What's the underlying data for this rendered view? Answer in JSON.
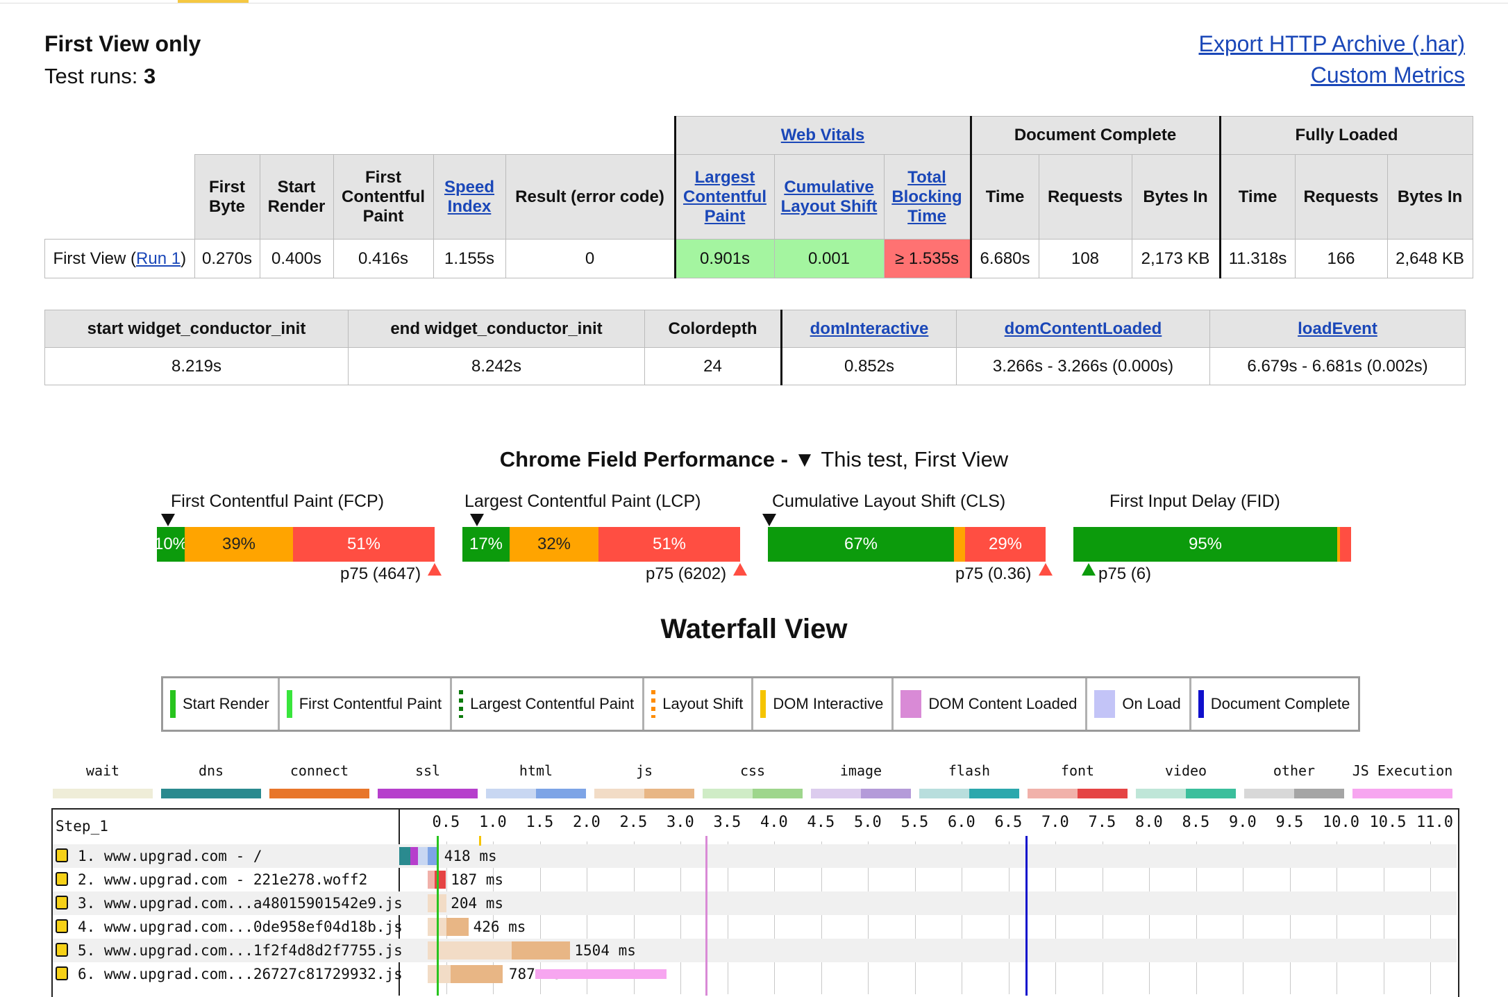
{
  "header": {
    "title": "First View only",
    "runs_label": "Test runs: ",
    "runs_value": "3",
    "link_har": "Export HTTP Archive (.har)",
    "link_custom": "Custom Metrics"
  },
  "summary": {
    "group_web_vitals": "Web Vitals",
    "group_doc_complete": "Document Complete",
    "group_fully_loaded": "Fully Loaded",
    "col_first_byte": "First Byte",
    "col_start_render": "Start Render",
    "col_fcp": "First Contentful Paint",
    "col_speed_index": "Speed Index",
    "col_result": "Result (error code)",
    "col_lcp": "Largest Contentful Paint",
    "col_cls": "Cumulative Layout Shift",
    "col_tbt": "Total Blocking Time",
    "col_time": "Time",
    "col_requests": "Requests",
    "col_bytes": "Bytes In",
    "row_label": "First View (",
    "row_run_link": "Run 1",
    "row_label_end": ")",
    "first_byte": "0.270s",
    "start_render": "0.400s",
    "fcp": "0.416s",
    "speed_index": "1.155s",
    "result": "0",
    "lcp": "0.901s",
    "cls": "0.001",
    "tbt": "≥ 1.535s",
    "dc_time": "6.680s",
    "dc_requests": "108",
    "dc_bytes": "2,173 KB",
    "fl_time": "11.318s",
    "fl_requests": "166",
    "fl_bytes": "2,648 KB"
  },
  "custom": {
    "h1": "start widget_conductor_init",
    "h2": "end widget_conductor_init",
    "h3": "Colordepth",
    "h4": "domInteractive",
    "h5": "domContentLoaded",
    "h6": "loadEvent",
    "v1": "8.219s",
    "v2": "8.242s",
    "v3": "24",
    "v4": "0.852s",
    "v5": "3.266s - 3.266s (0.000s)",
    "v6": "6.679s - 6.681s (0.002s)"
  },
  "field": {
    "title_bold": "Chrome Field Performance - ",
    "title_marker": "▼",
    "title_rest": " This test, First View",
    "metrics": [
      {
        "label": "First Contentful Paint (FCP)",
        "good": 10,
        "ni": 39,
        "poor": 51,
        "good_label": "10%",
        "ni_label": "39%",
        "poor_label": "51%",
        "p75": "p75 (4647)"
      },
      {
        "label": "Largest Contentful Paint (LCP)",
        "good": 17,
        "ni": 32,
        "poor": 51,
        "good_label": "17%",
        "ni_label": "32%",
        "poor_label": "51%",
        "p75": "p75 (6202)"
      },
      {
        "label": "Cumulative Layout Shift (CLS)",
        "good": 67,
        "ni": 4,
        "poor": 29,
        "good_label": "67%",
        "ni_label": "",
        "poor_label": "29%",
        "p75": "p75 (0.36)"
      },
      {
        "label": "First Input Delay (FID)",
        "good": 95,
        "ni": 1,
        "poor": 4,
        "good_label": "95%",
        "ni_label": "",
        "poor_label": "",
        "p75": "p75 (6)"
      }
    ]
  },
  "waterfall": {
    "title": "Waterfall View",
    "legend": [
      {
        "label": "Start Render",
        "color": "#28c41e"
      },
      {
        "label": "First Contentful Paint",
        "color": "#39e53c"
      },
      {
        "label": "Largest Contentful Paint",
        "color": "#0c7a0c"
      },
      {
        "label": "Layout Shift",
        "color": "#ff8c00"
      },
      {
        "label": "DOM Interactive",
        "color": "#f5c400"
      },
      {
        "label": "DOM Content Loaded",
        "color": "#d98ad6"
      },
      {
        "label": "On Load",
        "color": "#c3c4f7"
      },
      {
        "label": "Document Complete",
        "color": "#1010cc"
      }
    ],
    "resource_types": [
      {
        "label": "wait",
        "colors": [
          "#efedd8",
          "#efedd8"
        ]
      },
      {
        "label": "dns",
        "colors": [
          "#2a8a8f",
          "#2a8a8f"
        ]
      },
      {
        "label": "connect",
        "colors": [
          "#e8762a",
          "#e8762a"
        ]
      },
      {
        "label": "ssl",
        "colors": [
          "#b63fcc",
          "#b63fcc"
        ]
      },
      {
        "label": "html",
        "colors": [
          "#c8d7f2",
          "#7da4e6"
        ]
      },
      {
        "label": "js",
        "colors": [
          "#f2dcc6",
          "#e8b685"
        ]
      },
      {
        "label": "css",
        "colors": [
          "#cfecc6",
          "#9ed68c"
        ]
      },
      {
        "label": "image",
        "colors": [
          "#dcccee",
          "#b49bd9"
        ]
      },
      {
        "label": "flash",
        "colors": [
          "#b8dedd",
          "#2ca8ad"
        ]
      },
      {
        "label": "font",
        "colors": [
          "#f1b1aa",
          "#e54444"
        ]
      },
      {
        "label": "video",
        "colors": [
          "#bfe6d8",
          "#3bbf9c"
        ]
      },
      {
        "label": "other",
        "colors": [
          "#d8d8d8",
          "#a5a5a5"
        ]
      },
      {
        "label": "JS Execution",
        "colors": [
          "#f7a6f0",
          "#f7a6f0"
        ]
      }
    ],
    "step_label": "Step_1",
    "ticks": [
      "0.5",
      "1.0",
      "1.5",
      "2.0",
      "2.5",
      "3.0",
      "3.5",
      "4.0",
      "4.5",
      "5.0",
      "5.5",
      "6.0",
      "6.5",
      "7.0",
      "7.5",
      "8.0",
      "8.5",
      "9.0",
      "9.5",
      "10.0",
      "10.5",
      "11.0"
    ],
    "requests": [
      {
        "label": "1. www.upgrad.com - /",
        "ms": "418 ms"
      },
      {
        "label": "2. www.upgrad.com - 221e278.woff2",
        "ms": "187 ms"
      },
      {
        "label": "3. www.upgrad.com...a48015901542e9.js",
        "ms": "204 ms"
      },
      {
        "label": "4. www.upgrad.com...0de958ef04d18b.js",
        "ms": "426 ms"
      },
      {
        "label": "5. www.upgrad.com...1f2f4d8d2f7755.js",
        "ms": "1504 ms"
      },
      {
        "label": "6. www.upgrad.com...26727c81729932.js",
        "ms": "787 ms"
      }
    ]
  }
}
